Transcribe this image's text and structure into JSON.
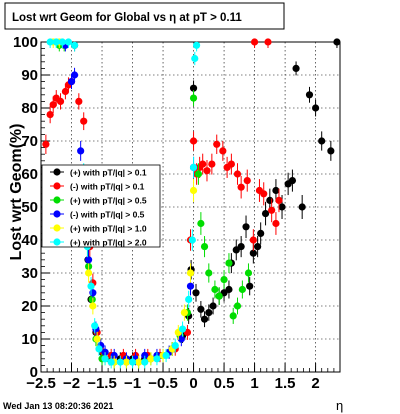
{
  "title": "Lost wrt Geom for Global vs   η at pT > 0.11",
  "footer_timestamp": "Wed Jan 13 08:20:36 2021",
  "chart_data": {
    "type": "scatter",
    "title": "Lost wrt Geom for Global vs   η at pT > 0.11",
    "xlabel": "η",
    "ylabel": "Lost wrt Geom(%)",
    "xlim": [
      -2.5,
      2.4
    ],
    "ylim": [
      0,
      100
    ],
    "x_ticks": [
      -2.5,
      -2,
      -1.5,
      -1,
      -0.5,
      0,
      0.5,
      1,
      1.5,
      2
    ],
    "x_tick_labels": [
      "−2.5",
      "−2",
      "−1.5",
      "−1",
      "−0.5",
      "0",
      "0.5",
      "1",
      "1.5",
      "2"
    ],
    "y_ticks": [
      0,
      10,
      20,
      30,
      40,
      50,
      60,
      70,
      80,
      90,
      100
    ],
    "y_tick_labels": [
      "0",
      "10",
      "20",
      "30",
      "40",
      "50",
      "60",
      "70",
      "80",
      "90",
      "100"
    ],
    "grid": true,
    "legend_position": "center-left",
    "series": [
      {
        "name": "(+) with pT/|q| > 0.1",
        "color": "#000000",
        "points": [
          [
            -1.95,
            99
          ],
          [
            -1.78,
            55
          ],
          [
            -1.73,
            34
          ],
          [
            -1.68,
            22
          ],
          [
            -1.6,
            12
          ],
          [
            -1.5,
            6
          ],
          [
            -1.38,
            4
          ],
          [
            -1.2,
            4
          ],
          [
            -1.0,
            4
          ],
          [
            -0.8,
            4
          ],
          [
            -0.55,
            5
          ],
          [
            -0.35,
            7
          ],
          [
            -0.18,
            11
          ],
          [
            -0.08,
            17
          ],
          [
            -0.04,
            31
          ],
          [
            0.0,
            86
          ],
          [
            0.04,
            24
          ],
          [
            0.12,
            19
          ],
          [
            0.18,
            16
          ],
          [
            0.25,
            18
          ],
          [
            0.32,
            20
          ],
          [
            0.42,
            23
          ],
          [
            0.5,
            24
          ],
          [
            0.58,
            25
          ],
          [
            0.62,
            33
          ],
          [
            0.7,
            37
          ],
          [
            0.78,
            38
          ],
          [
            0.86,
            44
          ],
          [
            0.92,
            26
          ],
          [
            0.98,
            36
          ],
          [
            1.05,
            38
          ],
          [
            1.1,
            42
          ],
          [
            1.18,
            48
          ],
          [
            1.25,
            52
          ],
          [
            1.35,
            55
          ],
          [
            1.45,
            50
          ],
          [
            1.55,
            57
          ],
          [
            1.62,
            58
          ],
          [
            1.68,
            92
          ],
          [
            1.78,
            50
          ],
          [
            1.9,
            84
          ],
          [
            2.0,
            80
          ],
          [
            2.1,
            70
          ],
          [
            2.25,
            67
          ],
          [
            2.35,
            100
          ]
        ]
      },
      {
        "name": "(-) with pT/|q| > 0.1",
        "color": "#ff0000",
        "points": [
          [
            -2.42,
            69
          ],
          [
            -2.35,
            78
          ],
          [
            -2.3,
            81
          ],
          [
            -2.25,
            83
          ],
          [
            -2.18,
            82
          ],
          [
            -2.1,
            85
          ],
          [
            -2.05,
            87
          ],
          [
            -2.0,
            88
          ],
          [
            -1.88,
            82
          ],
          [
            -1.8,
            76
          ],
          [
            -1.7,
            38
          ],
          [
            -1.65,
            27
          ],
          [
            -1.58,
            12
          ],
          [
            -1.48,
            6
          ],
          [
            -1.35,
            5
          ],
          [
            -1.15,
            5
          ],
          [
            -0.95,
            5
          ],
          [
            -0.75,
            5
          ],
          [
            -0.55,
            5
          ],
          [
            -0.3,
            7
          ],
          [
            -0.1,
            12
          ],
          [
            0.0,
            70
          ],
          [
            0.05,
            60
          ],
          [
            0.1,
            62
          ],
          [
            0.15,
            63
          ],
          [
            0.22,
            61
          ],
          [
            0.3,
            63
          ],
          [
            0.38,
            69
          ],
          [
            0.48,
            67
          ],
          [
            0.55,
            62
          ],
          [
            0.62,
            63
          ],
          [
            0.72,
            60
          ],
          [
            0.78,
            56
          ],
          [
            0.88,
            58
          ],
          [
            0.98,
            40
          ],
          [
            1.08,
            55
          ],
          [
            1.15,
            54
          ],
          [
            1.0,
            100
          ],
          [
            1.22,
            100
          ],
          [
            1.28,
            49
          ],
          [
            1.35,
            45
          ],
          [
            1.4,
            52
          ],
          [
            -0.05,
            40
          ]
        ]
      },
      {
        "name": "(+) with pT/|q| > 0.5",
        "color": "#00dd00",
        "points": [
          [
            -2.2,
            99
          ],
          [
            -2.12,
            99
          ],
          [
            -1.78,
            54
          ],
          [
            -1.72,
            32
          ],
          [
            -1.66,
            22
          ],
          [
            -1.6,
            10
          ],
          [
            -1.5,
            4
          ],
          [
            -1.3,
            3
          ],
          [
            -1.1,
            3
          ],
          [
            -0.9,
            3
          ],
          [
            -0.7,
            4
          ],
          [
            -0.5,
            5
          ],
          [
            -0.35,
            7
          ],
          [
            -0.22,
            11
          ],
          [
            -0.1,
            18
          ],
          [
            0.0,
            83
          ],
          [
            0.08,
            60
          ],
          [
            0.12,
            45
          ],
          [
            0.18,
            38
          ],
          [
            0.25,
            30
          ],
          [
            0.35,
            25
          ],
          [
            0.42,
            23
          ],
          [
            0.5,
            28
          ],
          [
            0.58,
            33
          ],
          [
            0.65,
            17
          ],
          [
            0.72,
            20
          ],
          [
            0.8,
            25
          ],
          [
            0.9,
            30
          ]
        ]
      },
      {
        "name": "(-) with pT/|q| > 0.5",
        "color": "#0000ff",
        "points": [
          [
            -2.1,
            99
          ],
          [
            -2.0,
            88
          ],
          [
            -1.95,
            90
          ],
          [
            -1.85,
            67
          ],
          [
            -1.72,
            34
          ],
          [
            -1.65,
            24
          ],
          [
            -1.6,
            13
          ],
          [
            -1.52,
            8
          ],
          [
            -1.45,
            6
          ],
          [
            -1.3,
            5
          ],
          [
            -1.1,
            4
          ],
          [
            -0.95,
            4
          ],
          [
            -0.8,
            5
          ],
          [
            -0.6,
            5
          ],
          [
            -0.4,
            6
          ],
          [
            -0.2,
            10
          ],
          [
            -0.05,
            26
          ],
          [
            0.0,
            62
          ]
        ]
      },
      {
        "name": "(+) with pT/|q| > 1.0",
        "color": "#ffff00",
        "points": [
          [
            -2.3,
            100
          ],
          [
            -2.2,
            100
          ],
          [
            -1.78,
            50
          ],
          [
            -1.72,
            30
          ],
          [
            -1.65,
            20
          ],
          [
            -1.58,
            10
          ],
          [
            -1.45,
            4
          ],
          [
            -1.3,
            3
          ],
          [
            -1.1,
            3
          ],
          [
            -0.9,
            3
          ],
          [
            -0.7,
            4
          ],
          [
            -0.5,
            5
          ],
          [
            -0.35,
            7
          ],
          [
            -0.25,
            12
          ],
          [
            -0.15,
            18
          ],
          [
            -0.05,
            30
          ],
          [
            0.0,
            55
          ]
        ]
      },
      {
        "name": "(+) with pT/|q| > 2.0",
        "color": "#00ffff",
        "points": [
          [
            -2.35,
            100
          ],
          [
            -2.25,
            100
          ],
          [
            -2.15,
            100
          ],
          [
            -2.05,
            100
          ],
          [
            -1.95,
            99
          ],
          [
            -1.8,
            60
          ],
          [
            -1.74,
            38
          ],
          [
            -1.68,
            26
          ],
          [
            -1.62,
            14
          ],
          [
            -1.55,
            7
          ],
          [
            -1.45,
            4
          ],
          [
            -1.35,
            3
          ],
          [
            -1.2,
            3
          ],
          [
            -1.0,
            3
          ],
          [
            -0.8,
            3
          ],
          [
            -0.6,
            4
          ],
          [
            -0.45,
            5
          ],
          [
            -0.3,
            8
          ],
          [
            -0.18,
            13
          ],
          [
            -0.08,
            22
          ],
          [
            -0.02,
            40
          ],
          [
            0.0,
            62
          ],
          [
            0.02,
            95
          ],
          [
            0.05,
            99
          ]
        ]
      }
    ]
  }
}
